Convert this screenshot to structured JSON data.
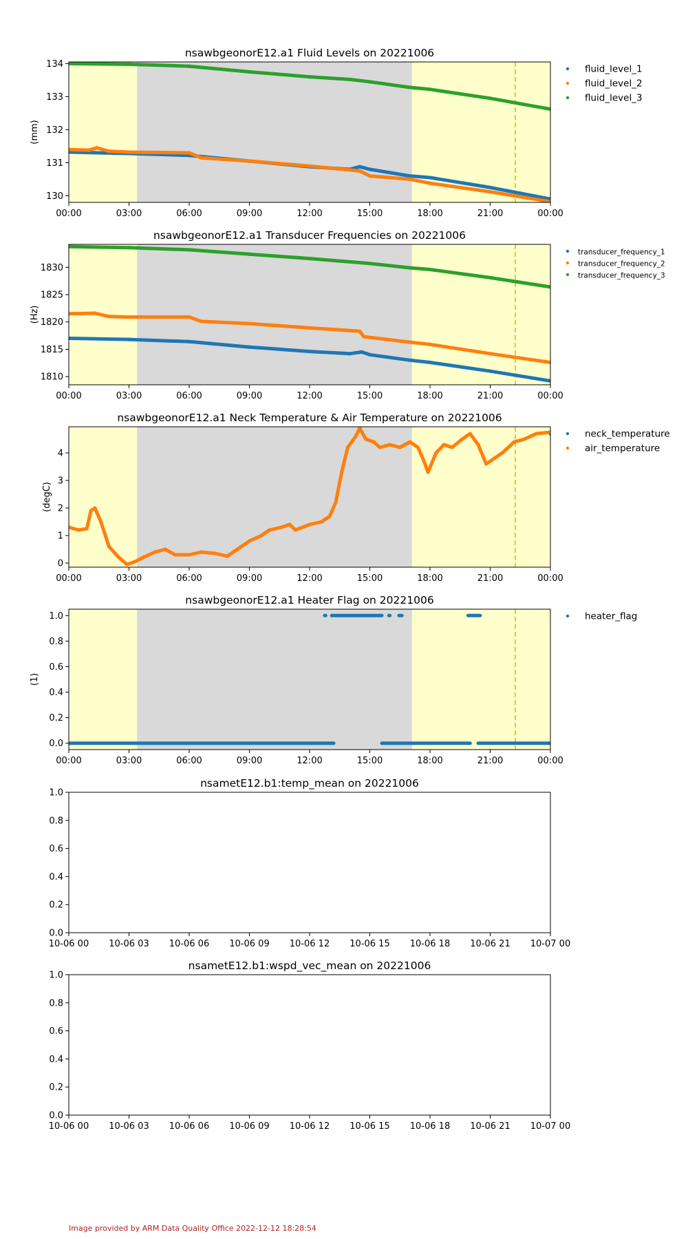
{
  "footer": "Image provided by ARM Data Quality Office 2022-12-12 18:28:54",
  "colors": {
    "night_shade": "#d9d9d9",
    "day_shade": "#ffffcc",
    "marker_line": "#c8c800",
    "series": [
      "#1f77b4",
      "#ff7f0e",
      "#2ca02c"
    ],
    "footer_text": "#b22222"
  },
  "chart_data": [
    {
      "type": "scatter",
      "title": "nsawbgeonorE12.a1 Fluid Levels on 20221006",
      "ylabel": "(mm)",
      "xlabel": "",
      "x_ticklabels": [
        "00:00",
        "03:00",
        "06:00",
        "09:00",
        "12:00",
        "15:00",
        "18:00",
        "21:00",
        "00:00"
      ],
      "xlim_hours": [
        0,
        24
      ],
      "ylim": [
        129.8,
        134.05
      ],
      "y_ticks": [
        130,
        131,
        132,
        133,
        134
      ],
      "background": {
        "night_hours": [
          3.4,
          17.1
        ],
        "dashed_line_hour": 22.25
      },
      "legend_placement": "right",
      "series": [
        {
          "name": "fluid_level_1",
          "points": [
            [
              0,
              131.32
            ],
            [
              3,
              131.28
            ],
            [
              6,
              131.22
            ],
            [
              9,
              131.05
            ],
            [
              12,
              130.88
            ],
            [
              14,
              130.8
            ],
            [
              14.5,
              130.88
            ],
            [
              15,
              130.8
            ],
            [
              17,
              130.6
            ],
            [
              18,
              130.55
            ],
            [
              21,
              130.25
            ],
            [
              24,
              129.9
            ]
          ]
        },
        {
          "name": "fluid_level_2",
          "points": [
            [
              0,
              131.4
            ],
            [
              1,
              131.38
            ],
            [
              1.4,
              131.45
            ],
            [
              2,
              131.35
            ],
            [
              3,
              131.32
            ],
            [
              6,
              131.3
            ],
            [
              6.6,
              131.15
            ],
            [
              9,
              131.05
            ],
            [
              12,
              130.9
            ],
            [
              14.5,
              130.75
            ],
            [
              15,
              130.6
            ],
            [
              17,
              130.5
            ],
            [
              18,
              130.38
            ],
            [
              21,
              130.12
            ],
            [
              24,
              129.82
            ]
          ]
        },
        {
          "name": "fluid_level_3",
          "points": [
            [
              0,
              134.0
            ],
            [
              3,
              133.98
            ],
            [
              6,
              133.92
            ],
            [
              9,
              133.75
            ],
            [
              12,
              133.6
            ],
            [
              14,
              133.52
            ],
            [
              15,
              133.45
            ],
            [
              17,
              133.28
            ],
            [
              18,
              133.22
            ],
            [
              21,
              132.95
            ],
            [
              24,
              132.62
            ]
          ]
        }
      ]
    },
    {
      "type": "scatter",
      "title": "nsawbgeonorE12.a1 Transducer Frequencies on 20221006",
      "ylabel": "(Hz)",
      "xlabel": "",
      "x_ticklabels": [
        "00:00",
        "03:00",
        "06:00",
        "09:00",
        "12:00",
        "15:00",
        "18:00",
        "21:00",
        "00:00"
      ],
      "xlim_hours": [
        0,
        24
      ],
      "ylim": [
        1808.5,
        1834.2
      ],
      "y_ticks": [
        1810,
        1815,
        1820,
        1825,
        1830
      ],
      "background": {
        "night_hours": [
          3.4,
          17.1
        ],
        "dashed_line_hour": 22.25
      },
      "legend_placement": "right",
      "series": [
        {
          "name": "transducer_frequency_1",
          "points": [
            [
              0,
              1817.0
            ],
            [
              3,
              1816.8
            ],
            [
              6,
              1816.4
            ],
            [
              9,
              1815.4
            ],
            [
              12,
              1814.6
            ],
            [
              14,
              1814.2
            ],
            [
              14.6,
              1814.5
            ],
            [
              15,
              1814.0
            ],
            [
              17,
              1813.0
            ],
            [
              18,
              1812.6
            ],
            [
              21,
              1811.0
            ],
            [
              24,
              1809.2
            ]
          ]
        },
        {
          "name": "transducer_frequency_2",
          "points": [
            [
              0,
              1821.5
            ],
            [
              1.3,
              1821.6
            ],
            [
              2,
              1821.0
            ],
            [
              3,
              1820.9
            ],
            [
              6,
              1820.9
            ],
            [
              6.6,
              1820.1
            ],
            [
              9,
              1819.7
            ],
            [
              12,
              1818.9
            ],
            [
              14.5,
              1818.3
            ],
            [
              14.7,
              1817.3
            ],
            [
              17,
              1816.3
            ],
            [
              18,
              1815.9
            ],
            [
              21,
              1814.2
            ],
            [
              24,
              1812.6
            ]
          ]
        },
        {
          "name": "transducer_frequency_3",
          "points": [
            [
              0,
              1833.8
            ],
            [
              3,
              1833.6
            ],
            [
              6,
              1833.2
            ],
            [
              9,
              1832.4
            ],
            [
              12,
              1831.6
            ],
            [
              14,
              1831.0
            ],
            [
              15,
              1830.7
            ],
            [
              17,
              1829.9
            ],
            [
              18,
              1829.6
            ],
            [
              21,
              1828.1
            ],
            [
              24,
              1826.4
            ]
          ]
        }
      ]
    },
    {
      "type": "scatter",
      "title": "nsawbgeonorE12.a1 Neck Temperature & Air Temperature on 20221006",
      "ylabel": "(degC)",
      "xlabel": "",
      "x_ticklabels": [
        "00:00",
        "03:00",
        "06:00",
        "09:00",
        "12:00",
        "15:00",
        "18:00",
        "21:00",
        "00:00"
      ],
      "xlim_hours": [
        0,
        24
      ],
      "ylim": [
        -0.15,
        4.95
      ],
      "y_ticks": [
        0,
        1,
        2,
        3,
        4
      ],
      "background": {
        "night_hours": [
          3.4,
          17.1
        ],
        "dashed_line_hour": 22.25
      },
      "legend_placement": "right",
      "series": [
        {
          "name": "neck_temperature",
          "points": [
            [
              24,
              4.7
            ]
          ]
        },
        {
          "name": "air_temperature",
          "points": [
            [
              0,
              1.3
            ],
            [
              0.5,
              1.2
            ],
            [
              0.9,
              1.25
            ],
            [
              1.1,
              1.9
            ],
            [
              1.3,
              2.0
            ],
            [
              1.6,
              1.5
            ],
            [
              2.0,
              0.6
            ],
            [
              2.5,
              0.2
            ],
            [
              2.9,
              -0.05
            ],
            [
              3.3,
              0.05
            ],
            [
              3.7,
              0.2
            ],
            [
              4.3,
              0.4
            ],
            [
              4.8,
              0.5
            ],
            [
              5.3,
              0.3
            ],
            [
              6,
              0.3
            ],
            [
              6.6,
              0.4
            ],
            [
              7.3,
              0.35
            ],
            [
              7.9,
              0.25
            ],
            [
              8.4,
              0.5
            ],
            [
              9,
              0.8
            ],
            [
              9.6,
              1.0
            ],
            [
              10,
              1.2
            ],
            [
              10.6,
              1.3
            ],
            [
              11.0,
              1.4
            ],
            [
              11.3,
              1.2
            ],
            [
              12,
              1.4
            ],
            [
              12.6,
              1.5
            ],
            [
              13,
              1.7
            ],
            [
              13.3,
              2.2
            ],
            [
              13.6,
              3.3
            ],
            [
              13.9,
              4.2
            ],
            [
              14.3,
              4.6
            ],
            [
              14.5,
              4.9
            ],
            [
              14.8,
              4.5
            ],
            [
              15.2,
              4.4
            ],
            [
              15.5,
              4.2
            ],
            [
              16,
              4.3
            ],
            [
              16.5,
              4.2
            ],
            [
              17,
              4.4
            ],
            [
              17.4,
              4.2
            ],
            [
              17.7,
              3.7
            ],
            [
              17.9,
              3.3
            ],
            [
              18.3,
              4.0
            ],
            [
              18.7,
              4.3
            ],
            [
              19.1,
              4.2
            ],
            [
              19.6,
              4.5
            ],
            [
              20,
              4.7
            ],
            [
              20.4,
              4.3
            ],
            [
              20.8,
              3.6
            ],
            [
              21.2,
              3.8
            ],
            [
              21.6,
              4.0
            ],
            [
              22.2,
              4.4
            ],
            [
              22.7,
              4.5
            ],
            [
              23.3,
              4.7
            ],
            [
              24,
              4.75
            ]
          ]
        }
      ]
    },
    {
      "type": "scatter",
      "title": "nsawbgeonorE12.a1 Heater Flag on 20221006",
      "ylabel": "(1)",
      "xlabel": "",
      "x_ticklabels": [
        "00:00",
        "03:00",
        "06:00",
        "09:00",
        "12:00",
        "15:00",
        "18:00",
        "21:00",
        "00:00"
      ],
      "xlim_hours": [
        0,
        24
      ],
      "ylim": [
        -0.05,
        1.05
      ],
      "y_ticks": [
        0.0,
        0.2,
        0.4,
        0.6,
        0.8,
        1.0
      ],
      "y_ticklabels": [
        "0.0",
        "0.2",
        "0.4",
        "0.6",
        "0.8",
        "1.0"
      ],
      "background": {
        "night_hours": [
          3.4,
          17.1
        ],
        "dashed_line_hour": 22.25
      },
      "legend_placement": "right",
      "series": [
        {
          "name": "heater_flag",
          "segments": [
            {
              "value": 0,
              "from": 0,
              "to": 13.2
            },
            {
              "value": 1,
              "from": 12.75,
              "to": 12.8
            },
            {
              "value": 1,
              "from": 13.1,
              "to": 15.6
            },
            {
              "value": 1,
              "from": 15.95,
              "to": 16.0
            },
            {
              "value": 1,
              "from": 16.45,
              "to": 16.6
            },
            {
              "value": 0,
              "from": 15.6,
              "to": 20.0
            },
            {
              "value": 1,
              "from": 19.9,
              "to": 20.5
            },
            {
              "value": 0,
              "from": 20.4,
              "to": 24
            }
          ]
        }
      ]
    },
    {
      "type": "scatter",
      "title": "nsametE12.b1:temp_mean on 20221006",
      "ylabel": "",
      "xlabel": "",
      "x_ticklabels": [
        "10-06 00",
        "10-06 03",
        "10-06 06",
        "10-06 09",
        "10-06 12",
        "10-06 15",
        "10-06 18",
        "10-06 21",
        "10-07 00"
      ],
      "xlim_hours": [
        0,
        24
      ],
      "ylim": [
        0,
        1
      ],
      "y_ticks": [
        0.0,
        0.2,
        0.4,
        0.6,
        0.8,
        1.0
      ],
      "y_ticklabels": [
        "0.0",
        "0.2",
        "0.4",
        "0.6",
        "0.8",
        "1.0"
      ],
      "series": []
    },
    {
      "type": "scatter",
      "title": "nsametE12.b1:wspd_vec_mean on 20221006",
      "ylabel": "",
      "xlabel": "",
      "x_ticklabels": [
        "10-06 00",
        "10-06 03",
        "10-06 06",
        "10-06 09",
        "10-06 12",
        "10-06 15",
        "10-06 18",
        "10-06 21",
        "10-07 00"
      ],
      "xlim_hours": [
        0,
        24
      ],
      "ylim": [
        0,
        1
      ],
      "y_ticks": [
        0.0,
        0.2,
        0.4,
        0.6,
        0.8,
        1.0
      ],
      "y_ticklabels": [
        "0.0",
        "0.2",
        "0.4",
        "0.6",
        "0.8",
        "1.0"
      ],
      "series": []
    }
  ]
}
